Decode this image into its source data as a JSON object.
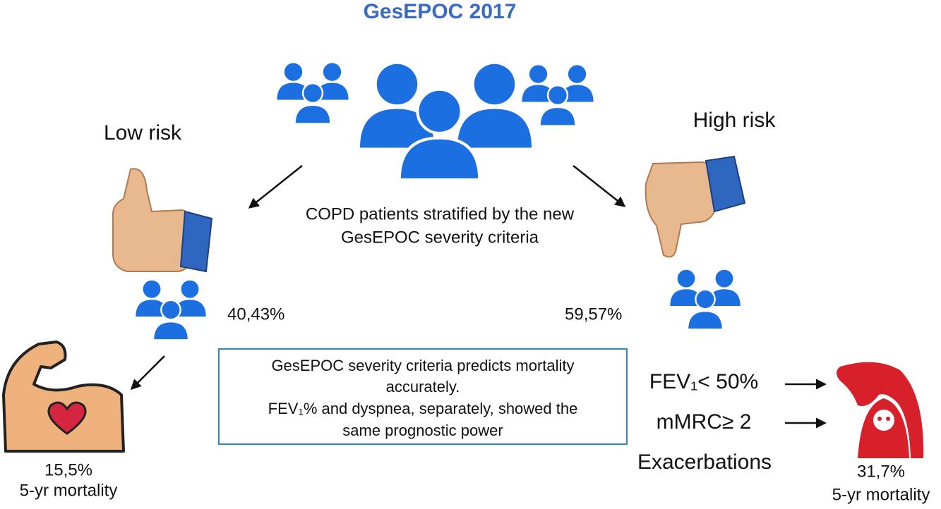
{
  "title": "GesEPOC 2017",
  "center_caption": [
    "COPD patients stratified by the new",
    "GesEPOC severity criteria"
  ],
  "low_risk": {
    "label": "Low risk",
    "share": "40,43%",
    "mortality": "15,5%",
    "mortality_label": "5-yr mortality"
  },
  "high_risk": {
    "label": "High risk",
    "share": "59,57%",
    "mortality": "31,7%",
    "mortality_label": "5-yr mortality"
  },
  "conclusion": [
    "GesEPOC severity criteria predicts mortality",
    "accurately.",
    "FEV₁% and dyspnea, separately, showed the",
    "same prognostic power"
  ],
  "criteria": [
    "FEV₁< 50%",
    "mMRC≥ 2",
    "Exacerbations"
  ]
}
